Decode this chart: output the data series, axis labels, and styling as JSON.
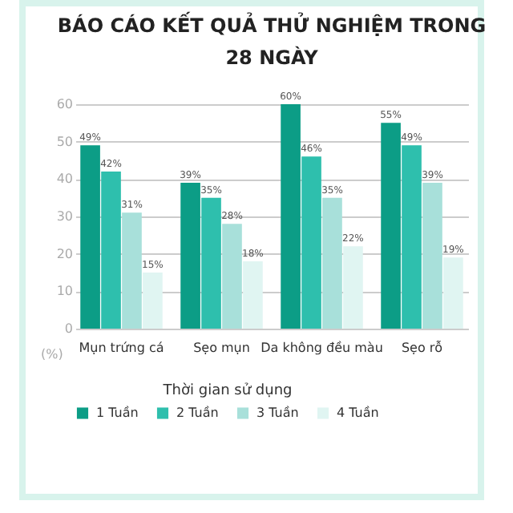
{
  "chart_data": {
    "type": "bar",
    "title": "BÁO CÁO KẾT QUẢ THỬ NGHIỆM TRONG 28 NGÀY",
    "ylabel": "(%)",
    "legend_title": "Thời gian sử dụng",
    "categories": [
      "Mụn trứng cá",
      "Sẹo mụn",
      "Da không đều màu",
      "Sẹo rỗ"
    ],
    "series": [
      {
        "name": "1 Tuần",
        "color": "#0c9d86",
        "values": [
          49,
          39,
          60,
          55
        ],
        "value_labels": [
          "49%",
          "39%",
          "60%",
          "55%"
        ]
      },
      {
        "name": "2 Tuần",
        "color": "#2ebfad",
        "values": [
          42,
          35,
          46,
          49
        ],
        "value_labels": [
          "42%",
          "35%",
          "46%",
          "49%"
        ]
      },
      {
        "name": "3 Tuần",
        "color": "#a8e0da",
        "values": [
          31,
          28,
          35,
          39
        ],
        "value_labels": [
          "31%",
          "28%",
          "35%",
          "39%"
        ]
      },
      {
        "name": "4 Tuần",
        "color": "#e0f5f2",
        "values": [
          15,
          18,
          22,
          19
        ],
        "value_labels": [
          "15%",
          "18%",
          "22%",
          "19%"
        ]
      }
    ],
    "ylim": [
      0,
      60
    ],
    "yticks": [
      0,
      10,
      20,
      30,
      40,
      50,
      60
    ],
    "grid": "y",
    "legend": "bottom"
  }
}
